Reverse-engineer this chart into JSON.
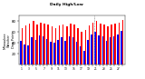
{
  "title": "Daily High/Low",
  "ylabel": "Milwaukee\nWeather\nDew Point",
  "high": [
    68,
    72,
    75,
    80,
    74,
    78,
    76,
    74,
    70,
    68,
    72,
    74,
    70,
    76,
    74,
    68,
    60,
    64,
    72,
    78,
    80,
    76,
    74,
    70,
    74,
    76,
    78,
    82
  ],
  "low": [
    44,
    38,
    36,
    50,
    46,
    54,
    52,
    48,
    42,
    40,
    46,
    50,
    44,
    52,
    50,
    42,
    34,
    26,
    46,
    56,
    60,
    54,
    52,
    44,
    50,
    52,
    56,
    62
  ],
  "ylim": [
    0,
    90
  ],
  "yticks": [
    20,
    40,
    60,
    80
  ],
  "dashed_line_x": 19.5,
  "bar_width": 0.38,
  "high_color": "#ff0000",
  "low_color": "#0000ff",
  "bg_color": "#ffffff",
  "label_bg": "#c0c0c0",
  "legend_labels": [
    "Low",
    "High"
  ],
  "legend_colors": [
    "#0000ff",
    "#ff0000"
  ],
  "n_days": 28,
  "xtick_labels": [
    "1",
    "",
    "3",
    "",
    "5",
    "",
    "7",
    "",
    "9",
    "",
    "11",
    "",
    "13",
    "",
    "15",
    "",
    "17",
    "",
    "19",
    "",
    "21",
    "",
    "23",
    "",
    "25",
    "",
    "27",
    ""
  ]
}
